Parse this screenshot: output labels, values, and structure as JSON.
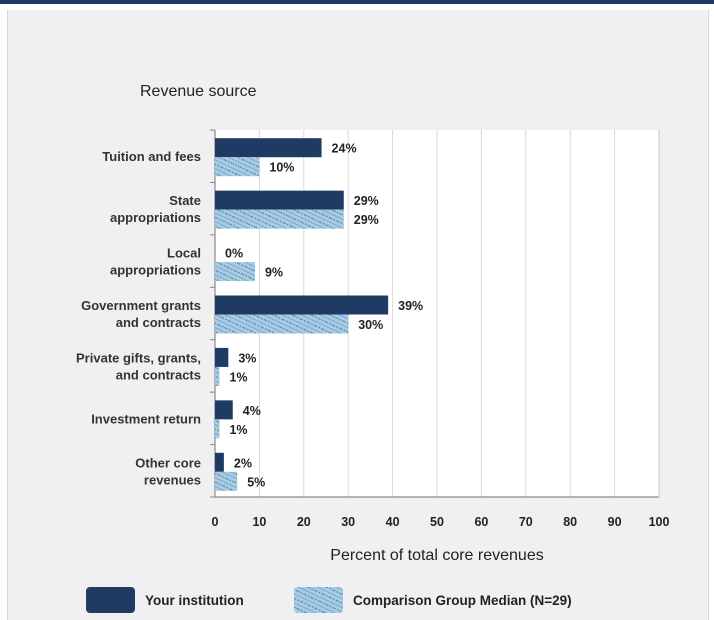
{
  "chart_data": {
    "type": "bar",
    "orientation": "horizontal",
    "title": "Revenue source",
    "xlabel": "Percent of total core revenues",
    "xlim": [
      0,
      100
    ],
    "xticks": [
      0,
      10,
      20,
      30,
      40,
      50,
      60,
      70,
      80,
      90,
      100
    ],
    "grid": "vertical",
    "categories": [
      [
        "Tuition and fees"
      ],
      [
        "State",
        "appropriations"
      ],
      [
        "Local",
        "appropriations"
      ],
      [
        "Government grants",
        "and contracts"
      ],
      [
        "Private gifts, grants,",
        "and contracts"
      ],
      [
        "Investment return"
      ],
      [
        "Other core",
        "revenues"
      ]
    ],
    "series": [
      {
        "name": "Your institution",
        "values": [
          24,
          29,
          0,
          39,
          3,
          4,
          2
        ],
        "labels": [
          "24%",
          "29%",
          "0%",
          "39%",
          "3%",
          "4%",
          "2%"
        ],
        "color": "#1f3b63",
        "pattern": "solid"
      },
      {
        "name": "Comparison Group Median (N=29)",
        "values": [
          10,
          29,
          9,
          30,
          1,
          1,
          5
        ],
        "labels": [
          "10%",
          "29%",
          "9%",
          "30%",
          "1%",
          "1%",
          "5%"
        ],
        "color": "#9fc3e4",
        "pattern": "hatched"
      }
    ],
    "legend": "bottom"
  }
}
